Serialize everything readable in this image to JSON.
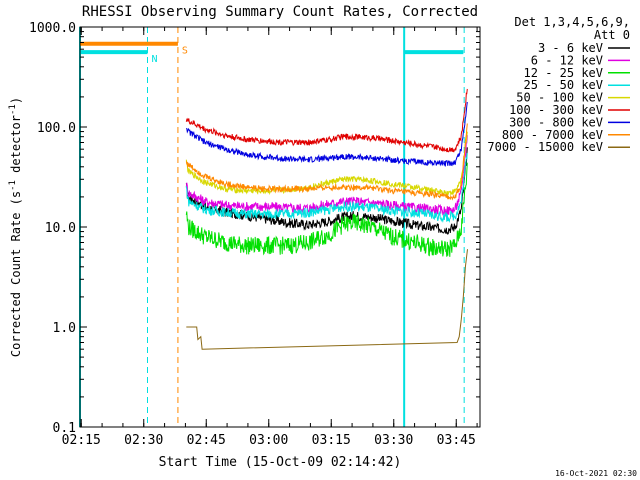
{
  "chart_data": {
    "type": "line",
    "title": "RHESSI Observing Summary Count Rates, Corrected",
    "xlabel": "Start Time (15-Oct-09 02:14:42)",
    "ylabel": "Corrected Count Rate (s",
    "ylabel_sup": "-1",
    "ylabel_tail": " detector",
    "ylabel_end": ")",
    "yscale": "log",
    "ylim": [
      0.1,
      1000.0
    ],
    "xlim_minutes": [
      0,
      96
    ],
    "xlim_labels": [
      "02:14:42",
      "03:50:42"
    ],
    "yticks": [
      {
        "value": 1000.0,
        "label": "1000.0"
      },
      {
        "value": 100.0,
        "label": "100.0"
      },
      {
        "value": 10.0,
        "label": "10.0"
      },
      {
        "value": 1.0,
        "label": "1.0"
      },
      {
        "value": 0.1,
        "label": "0.1"
      }
    ],
    "xticks": [
      {
        "t": 0.3,
        "label": "02:15"
      },
      {
        "t": 15.3,
        "label": "02:30"
      },
      {
        "t": 30.3,
        "label": "02:45"
      },
      {
        "t": 45.3,
        "label": "03:00"
      },
      {
        "t": 60.3,
        "label": "03:15"
      },
      {
        "t": 75.3,
        "label": "03:30"
      },
      {
        "t": 90.3,
        "label": "03:45"
      }
    ],
    "legend_title_1": "Det 1,3,4,5,6,9,",
    "legend_title_2": "Att 0",
    "legend_position": "right",
    "grid": false,
    "series": [
      {
        "name": "3 - 6 keV",
        "color": "#000000",
        "x": [
          25.5,
          26,
          30,
          35,
          40,
          45,
          50,
          55,
          60,
          63,
          66,
          70,
          75,
          80,
          85,
          88,
          90,
          91.5,
          93
        ],
        "y": [
          25,
          20,
          16,
          14,
          13,
          12,
          11,
          10.5,
          11.5,
          12.5,
          13,
          12.5,
          11.5,
          10.5,
          9.8,
          9.5,
          10,
          15,
          60
        ]
      },
      {
        "name": "6 - 12 keV",
        "color": "#e000e0",
        "x": [
          25.5,
          26,
          30,
          35,
          40,
          45,
          50,
          55,
          60,
          63,
          66,
          70,
          75,
          80,
          85,
          88,
          90,
          91.5,
          93
        ],
        "y": [
          27,
          22,
          18,
          16.5,
          16,
          16,
          15.5,
          15.5,
          17,
          18,
          18,
          17.5,
          16.5,
          15.5,
          15,
          14.5,
          15,
          22,
          90
        ]
      },
      {
        "name": "12 - 25 keV",
        "color": "#00e000",
        "x": [
          25.5,
          26,
          30,
          35,
          40,
          45,
          50,
          55,
          60,
          63,
          66,
          70,
          75,
          80,
          85,
          88,
          90,
          91.5,
          93
        ],
        "y": [
          14,
          10,
          8,
          7,
          6.5,
          6.5,
          6.5,
          7,
          8.5,
          10.5,
          11,
          10,
          8,
          7,
          6.2,
          6,
          6.5,
          10,
          40
        ]
      },
      {
        "name": "25 - 50 keV",
        "color": "#00e0e0",
        "x": [
          25.5,
          26,
          30,
          35,
          40,
          45,
          50,
          55,
          60,
          63,
          66,
          70,
          75,
          80,
          85,
          88,
          90,
          91.5,
          93
        ],
        "y": [
          25,
          18,
          15,
          14,
          13.5,
          13.5,
          13.5,
          14,
          15,
          16,
          16,
          15.5,
          14.5,
          14,
          13,
          12.5,
          13,
          18,
          60
        ]
      },
      {
        "name": "50 - 100 keV",
        "color": "#d8d800",
        "x": [
          25.5,
          26,
          30,
          35,
          40,
          45,
          50,
          55,
          60,
          63,
          66,
          70,
          75,
          80,
          85,
          88,
          90,
          91.5,
          93
        ],
        "y": [
          45,
          36,
          28,
          24,
          23,
          23,
          23.5,
          25,
          28,
          30,
          30,
          29,
          27,
          25,
          23,
          22,
          22.5,
          30,
          90
        ]
      },
      {
        "name": "100 - 300 keV",
        "color": "#e00000",
        "x": [
          25.5,
          26,
          30,
          35,
          40,
          45,
          50,
          55,
          60,
          63,
          66,
          70,
          75,
          80,
          85,
          88,
          90,
          91.5,
          93
        ],
        "y": [
          120,
          115,
          95,
          82,
          75,
          72,
          70,
          70,
          75,
          80,
          80,
          78,
          73,
          68,
          63,
          60,
          60,
          80,
          260
        ]
      },
      {
        "name": "300 - 800 keV",
        "color": "#0000e0",
        "x": [
          25.5,
          26,
          30,
          35,
          40,
          45,
          50,
          55,
          60,
          63,
          66,
          70,
          75,
          80,
          85,
          88,
          90,
          91.5,
          93
        ],
        "y": [
          100,
          90,
          70,
          60,
          53,
          50,
          48,
          47,
          49,
          51,
          50,
          49,
          47,
          45,
          44,
          43,
          44,
          60,
          180
        ]
      },
      {
        "name": "800 - 7000 keV",
        "color": "#ff8800",
        "x": [
          25.5,
          26,
          30,
          35,
          40,
          45,
          50,
          55,
          60,
          63,
          66,
          70,
          75,
          80,
          85,
          88,
          90,
          91.5,
          93
        ],
        "y": [
          45,
          42,
          32,
          27,
          25,
          24,
          24,
          24,
          25,
          25,
          25,
          24.5,
          23,
          22,
          21,
          20,
          20,
          26,
          120
        ]
      },
      {
        "name": "7000 - 15000 keV",
        "color": "#8b6914",
        "x": [
          25.5,
          28,
          28.3,
          29,
          29.3,
          90.5,
          91,
          91.5,
          92,
          92.5,
          93
        ],
        "y": [
          1.0,
          1.0,
          0.75,
          0.8,
          0.6,
          0.7,
          0.8,
          1.2,
          2.0,
          4,
          6
        ]
      }
    ],
    "state_bars": [
      {
        "label": "N",
        "color": "#00e0e0",
        "segments": [
          [
            0,
            16.2
          ],
          [
            77.8,
            92
          ]
        ],
        "level": 560
      },
      {
        "label": "S",
        "color": "#ff8800",
        "segments": [
          [
            0,
            23.5
          ]
        ],
        "level": 680
      }
    ],
    "markers": [
      {
        "color": "#00e0e0",
        "t": 0,
        "style": "solid"
      },
      {
        "color": "#00e0e0",
        "t": 16.2,
        "style": "dashed"
      },
      {
        "color": "#ff8800",
        "t": 23.5,
        "style": "dashed"
      },
      {
        "color": "#00e0e0",
        "t": 77.8,
        "style": "solid"
      },
      {
        "color": "#00e0e0",
        "t": 92.2,
        "style": "dashed"
      }
    ],
    "footer_date": "16-Oct-2021 02:30"
  }
}
